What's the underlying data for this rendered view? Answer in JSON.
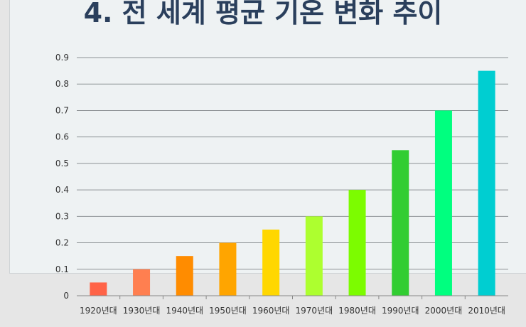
{
  "title": "4. 전 세계 평균 기온 변화 추이",
  "chart_data": {
    "type": "bar",
    "title": "4. 전 세계 평균 기온 변화 추이",
    "categories": [
      "1920년대",
      "1930년대",
      "1940년대",
      "1950년대",
      "1960년대",
      "1970년대",
      "1980년대",
      "1990년대",
      "2000년대",
      "2010년대"
    ],
    "values": [
      0.05,
      0.1,
      0.15,
      0.2,
      0.25,
      0.3,
      0.4,
      0.55,
      0.7,
      0.85
    ],
    "colors": [
      "#ff6347",
      "#ff7f50",
      "#ff8c00",
      "#ffa500",
      "#ffd700",
      "#adff2f",
      "#7cfc00",
      "#32cd32",
      "#00ff7f",
      "#00ced1"
    ],
    "y_ticks": [
      "0",
      "0.1",
      "0.2",
      "0.3",
      "0.4",
      "0.5",
      "0.6",
      "0.7",
      "0.8",
      "0.9"
    ],
    "ylim": [
      0,
      0.9
    ],
    "grid": true,
    "legend": "none"
  }
}
